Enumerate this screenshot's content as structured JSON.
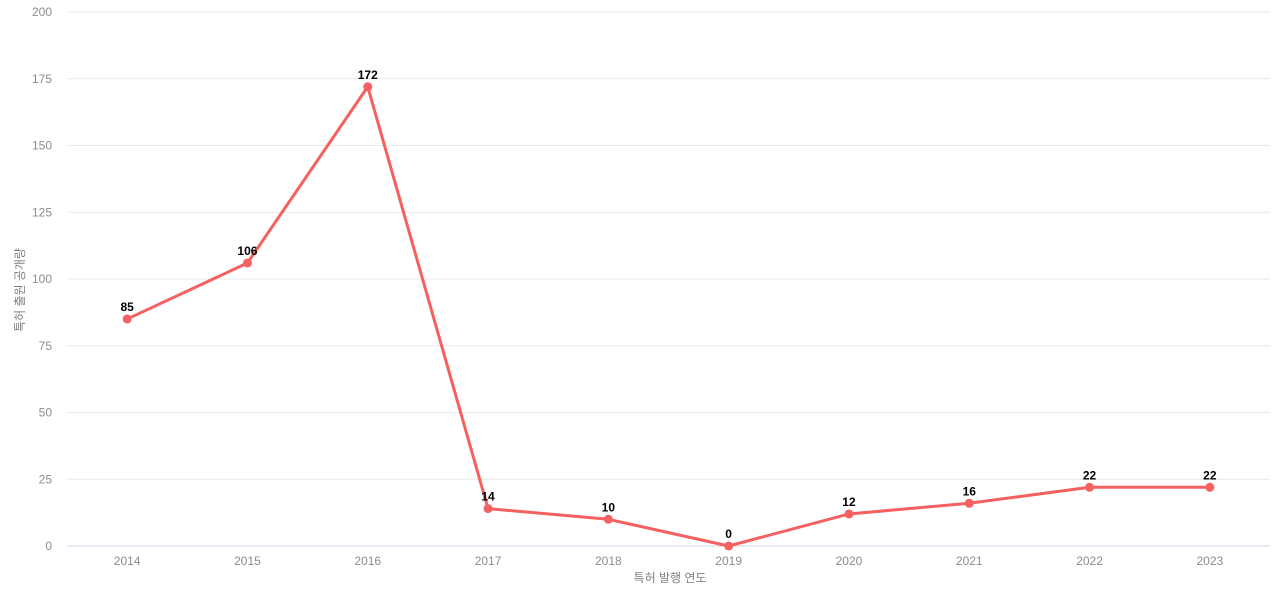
{
  "chart_data": {
    "type": "line",
    "categories": [
      "2014",
      "2015",
      "2016",
      "2017",
      "2018",
      "2019",
      "2020",
      "2021",
      "2022",
      "2023"
    ],
    "values": [
      85,
      106,
      172,
      14,
      10,
      0,
      12,
      16,
      22,
      22
    ],
    "title": "",
    "xlabel": "특허 발행 연도",
    "ylabel": "특허 출원 공개량",
    "ylim": [
      0,
      200
    ],
    "ytick_step": 25,
    "grid": true,
    "legend": "none",
    "point_labels_visible": true,
    "colors": {
      "line": "#f56060",
      "point": "#f56060",
      "value_label": "#000000",
      "gridline": "#e9e9e9",
      "axis_line": "#ccd6eb",
      "tick_label": "#8c8c8c",
      "axis_title": "#7f7f7f",
      "background": "#ffffff"
    }
  }
}
